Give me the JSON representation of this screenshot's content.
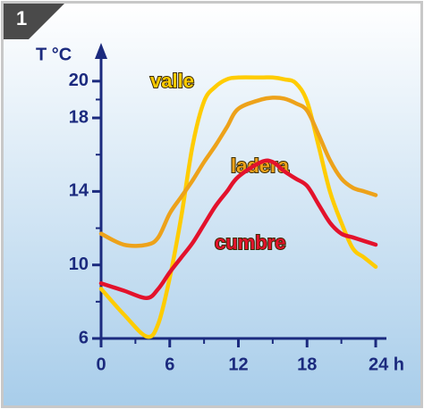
{
  "chart_data": {
    "type": "line",
    "badge": "1",
    "y_label": "T °C",
    "x": [
      0,
      2,
      4,
      5,
      6,
      7,
      8,
      9,
      10,
      11,
      12,
      14,
      15,
      16,
      17,
      18,
      19,
      20,
      21,
      22,
      23,
      24
    ],
    "series": [
      {
        "name": "valle",
        "color": "#ffcc00",
        "values": [
          8.7,
          7.3,
          6.1,
          6.8,
          9.3,
          12.6,
          16.5,
          18.9,
          19.7,
          20.1,
          20.2,
          20.2,
          20.2,
          20.1,
          19.9,
          18.9,
          16.5,
          14,
          12.3,
          10.9,
          10.4,
          9.9
        ]
      },
      {
        "name": "ladera",
        "color": "#eda21a",
        "values": [
          11.7,
          11.1,
          11.1,
          11.5,
          12.8,
          13.7,
          14.6,
          15.6,
          16.5,
          17.5,
          18.5,
          19,
          19.1,
          19.05,
          18.8,
          18.4,
          17.1,
          15.7,
          14.7,
          14.2,
          14,
          13.8
        ]
      },
      {
        "name": "cumbre",
        "color": "#e3122c",
        "values": [
          9,
          8.6,
          8.2,
          8.7,
          9.6,
          10.4,
          11.2,
          12.2,
          13.2,
          14,
          14.8,
          15.6,
          15.6,
          15.1,
          14.7,
          14.3,
          13.3,
          12.3,
          11.7,
          11.5,
          11.3,
          11.1
        ]
      }
    ],
    "xlim": [
      0,
      24
    ],
    "xticks": [
      0,
      6,
      12,
      18,
      {
        "value": 24,
        "label": "24 h"
      }
    ],
    "xminorticks": [
      3,
      9,
      15,
      21
    ],
    "ylim": [
      6,
      21.5
    ],
    "yticks": [
      6,
      10,
      14,
      18,
      20
    ],
    "yminorticks": [
      8,
      12,
      16,
      19
    ]
  }
}
